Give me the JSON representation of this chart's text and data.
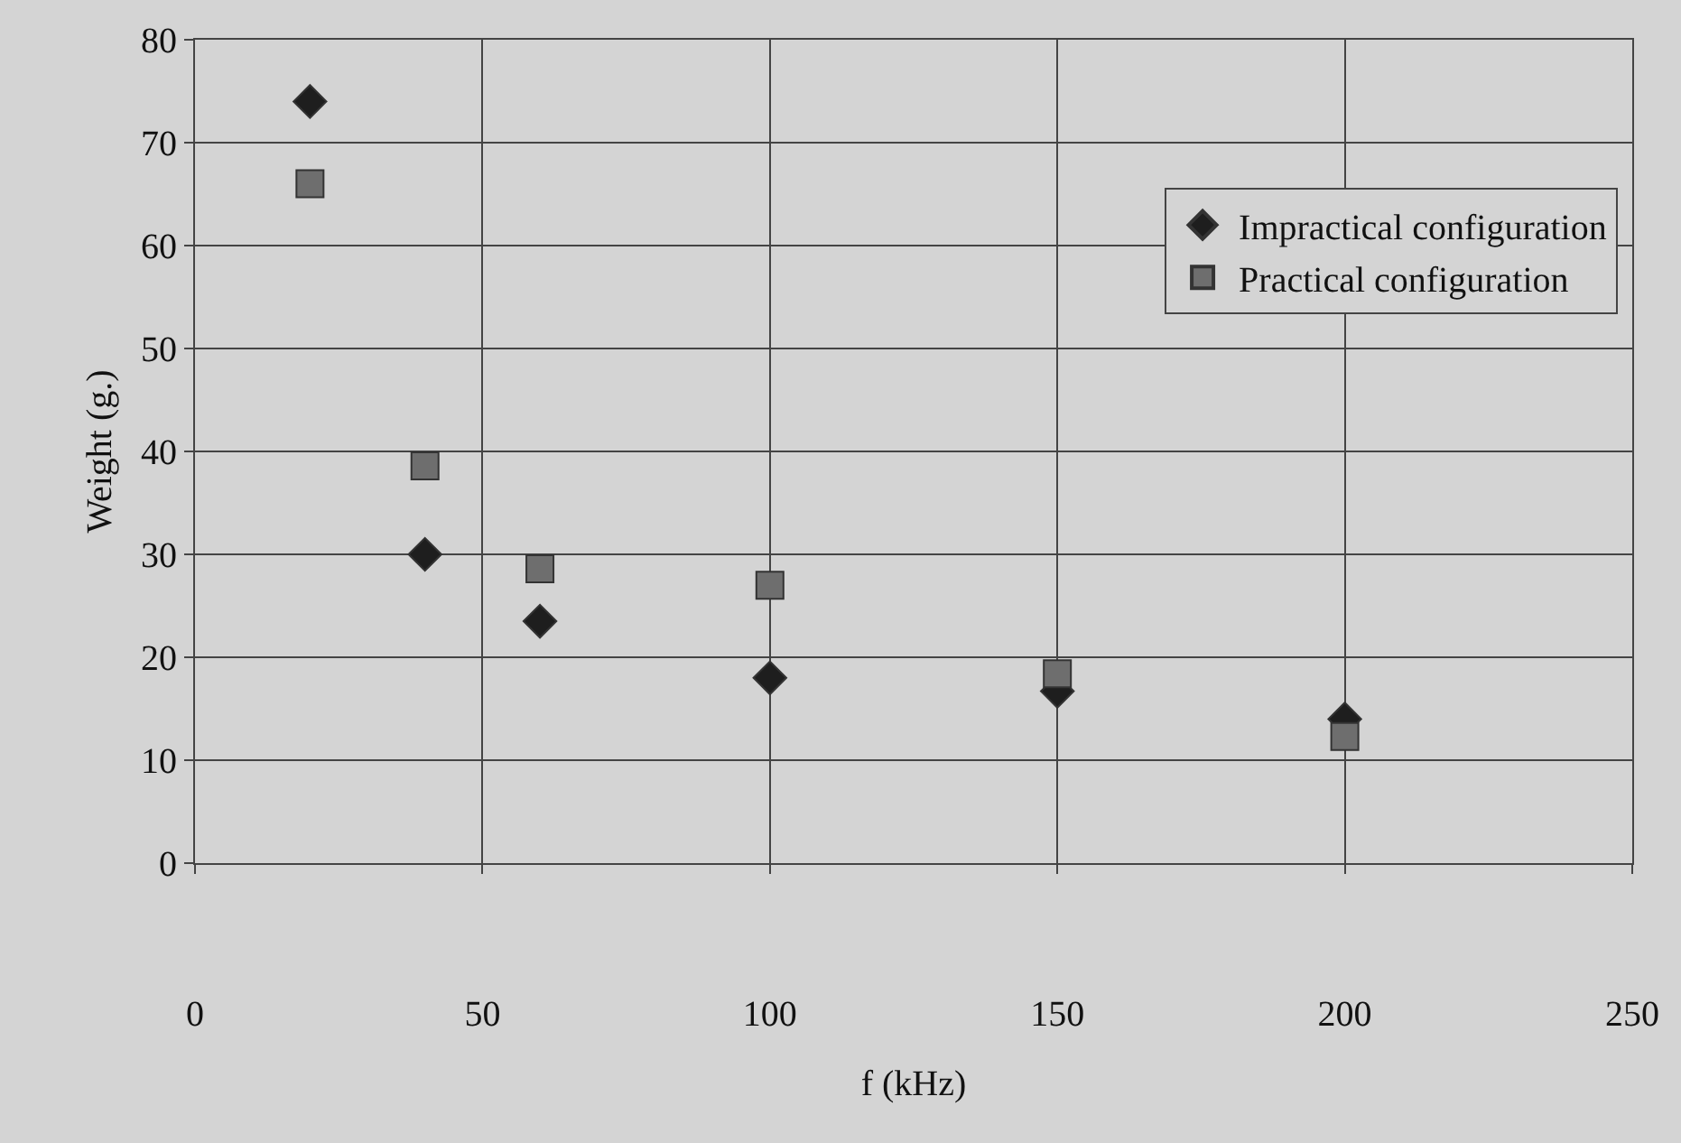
{
  "chart_data": {
    "type": "scatter",
    "xlabel": "f (kHz)",
    "ylabel": "Weight (g.)",
    "xlim": [
      0,
      250
    ],
    "xticks": [
      0,
      50,
      100,
      150,
      200,
      250
    ],
    "ylim": [
      0,
      80
    ],
    "yticks": [
      0,
      10,
      20,
      30,
      40,
      50,
      60,
      70,
      80
    ],
    "grid": true,
    "legend": "top right",
    "series": [
      {
        "name": "Impractical configuration",
        "color": "#1e1e1e",
        "marker": "diamond",
        "x": [
          20,
          40,
          60,
          100,
          150,
          200
        ],
        "values": [
          74,
          30,
          23.5,
          18,
          16.7,
          14
        ]
      },
      {
        "name": "Practical configuration",
        "color": "#6e6e6e",
        "marker": "square",
        "x": [
          20,
          40,
          60,
          100,
          150,
          200
        ],
        "values": [
          66,
          38.6,
          28.6,
          27,
          18.4,
          12.3
        ]
      }
    ]
  }
}
